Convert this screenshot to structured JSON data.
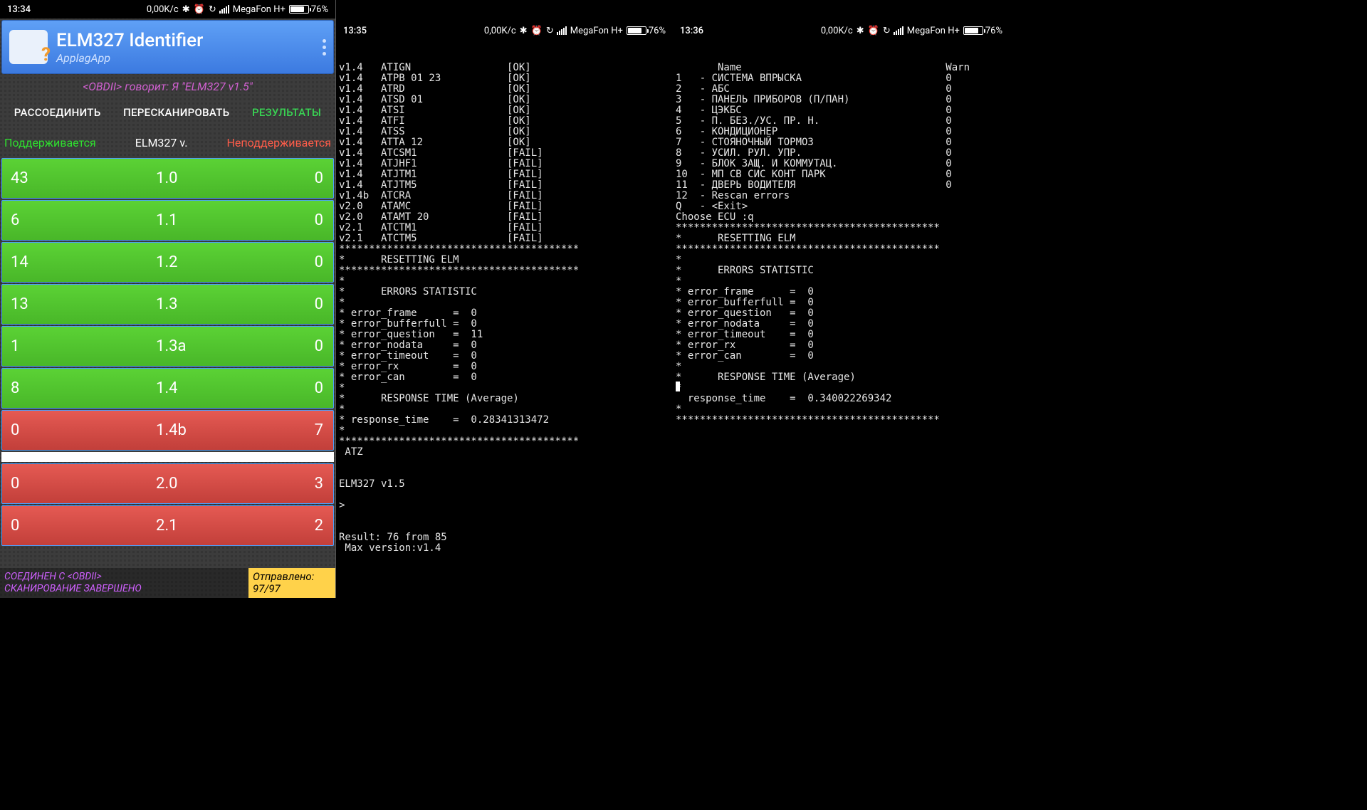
{
  "pane1": {
    "status": {
      "time": "13:34",
      "speed": "0,00K/с",
      "carrier": "MegaFon H+",
      "battery": "76%"
    },
    "app": {
      "title": "ELM327 Identifier",
      "subtitle": "ApplagApp"
    },
    "speak_line": "<OBDII> говорит: Я \"ELM327 v1.5\"",
    "buttons": {
      "disconnect": "РАССОЕДИНИТЬ",
      "rescan": "ПЕРЕСКАНИРОВАТЬ",
      "results": "РЕЗУЛЬТАТЫ"
    },
    "headers": {
      "supported": "Поддерживается",
      "version": "ELM327 v.",
      "unsupported": "Неподдерживается"
    },
    "rows": [
      {
        "sup": "43",
        "ver": "1.0",
        "un": "0",
        "ok": true
      },
      {
        "sup": "6",
        "ver": "1.1",
        "un": "0",
        "ok": true
      },
      {
        "sup": "14",
        "ver": "1.2",
        "un": "0",
        "ok": true
      },
      {
        "sup": "13",
        "ver": "1.3",
        "un": "0",
        "ok": true
      },
      {
        "sup": "1",
        "ver": "1.3a",
        "un": "0",
        "ok": true
      },
      {
        "sup": "8",
        "ver": "1.4",
        "un": "0",
        "ok": true
      },
      {
        "sup": "0",
        "ver": "1.4b",
        "un": "7",
        "ok": false
      },
      {
        "sup": "0",
        "ver": "2.0",
        "un": "3",
        "ok": false
      },
      {
        "sup": "0",
        "ver": "2.1",
        "un": "2",
        "ok": false
      }
    ],
    "footer": {
      "line1": "СОЕДИНЕН С <OBDII>",
      "line2": "СКАНИРОВАНИЕ ЗАВЕРШЕНО",
      "sent_label": "Отправлено:",
      "sent_value": "97/97"
    }
  },
  "pane2": {
    "status": {
      "time": "13:35",
      "speed": "0,00K/с",
      "carrier": "MegaFon H+",
      "battery": "76%"
    },
    "cmds": [
      [
        "v1.4",
        "ATIGN",
        "[OK]"
      ],
      [
        "v1.4",
        "ATPB 01 23",
        "[OK]"
      ],
      [
        "v1.4",
        "ATRD",
        "[OK]"
      ],
      [
        "v1.4",
        "ATSD 01",
        "[OK]"
      ],
      [
        "v1.4",
        "ATSI",
        "[OK]"
      ],
      [
        "v1.4",
        "ATFI",
        "[OK]"
      ],
      [
        "v1.4",
        "ATSS",
        "[OK]"
      ],
      [
        "v1.4",
        "ATTA 12",
        "[OK]"
      ],
      [
        "v1.4",
        "ATCSM1",
        "[FAIL]"
      ],
      [
        "v1.4",
        "ATJHF1",
        "[FAIL]"
      ],
      [
        "v1.4",
        "ATJTM1",
        "[FAIL]"
      ],
      [
        "v1.4",
        "ATJTM5",
        "[FAIL]"
      ],
      [
        "v1.4b",
        "ATCRA",
        "[FAIL]"
      ],
      [
        "v2.0",
        "ATAMC",
        "[FAIL]"
      ],
      [
        "v2.0",
        "ATAMT 20",
        "[FAIL]"
      ],
      [
        "v2.1",
        "ATCTM1",
        "[FAIL]"
      ],
      [
        "v2.1",
        "ATCTM5",
        "[FAIL]"
      ]
    ],
    "reset_header": "RESETTING ELM",
    "stats_header": "ERRORS STATISTIC",
    "stats": [
      [
        "error_frame",
        "0"
      ],
      [
        "error_bufferfull",
        "0"
      ],
      [
        "error_question",
        "11"
      ],
      [
        "error_nodata",
        "0"
      ],
      [
        "error_timeout",
        "0"
      ],
      [
        "error_rx",
        "0"
      ],
      [
        "error_can",
        "0"
      ]
    ],
    "response_header": "RESPONSE TIME (Average)",
    "response_time": "0.28341313472",
    "atz": "ATZ",
    "elm": "ELM327 v1.5",
    "prompt": ">",
    "result": "Result: 76 from 85",
    "maxver": " Max version:v1.4"
  },
  "pane3": {
    "status": {
      "time": "13:36",
      "speed": "0,00K/с",
      "carrier": "MegaFon H+",
      "battery": "76%"
    },
    "name_hdr": "Name",
    "warn_hdr": "Warn",
    "ecu": [
      [
        "1",
        "СИСТЕМА ВПРЫСКА",
        "0"
      ],
      [
        "2",
        "АБС",
        "0"
      ],
      [
        "3",
        "ПАНЕЛЬ ПРИБОРОВ (П/ПАН)",
        "0"
      ],
      [
        "4",
        "ЦЭКБС",
        "0"
      ],
      [
        "5",
        "П. БЕЗ./УС. ПР. Н.",
        "0"
      ],
      [
        "6",
        "КОНДИЦИОНЕР",
        "0"
      ],
      [
        "7",
        "СТОЯНОЧНЫЙ ТОРМОЗ",
        "0"
      ],
      [
        "8",
        "УСИЛ. РУЛ. УПР.",
        "0"
      ],
      [
        "9",
        "БЛОК ЗАЩ. И КОММУТАЦ.",
        "0"
      ],
      [
        "10",
        "МП СВ СИС КОНТ ПАРК",
        "0"
      ],
      [
        "11",
        "ДВЕРЬ ВОДИТЕЛЯ",
        "0"
      ],
      [
        "12",
        "Rescan errors",
        ""
      ],
      [
        "Q",
        "<Exit>",
        ""
      ]
    ],
    "choose": "Choose ECU :q",
    "reset_header": "RESETTING ELM",
    "stats_header": "ERRORS STATISTIC",
    "stats": [
      [
        "error_frame",
        "0"
      ],
      [
        "error_bufferfull",
        "0"
      ],
      [
        "error_question",
        "0"
      ],
      [
        "error_nodata",
        "0"
      ],
      [
        "error_timeout",
        "0"
      ],
      [
        "error_rx",
        "0"
      ],
      [
        "error_can",
        "0"
      ]
    ],
    "response_header": "RESPONSE TIME (Average)",
    "response_time": "0.340022269342"
  }
}
